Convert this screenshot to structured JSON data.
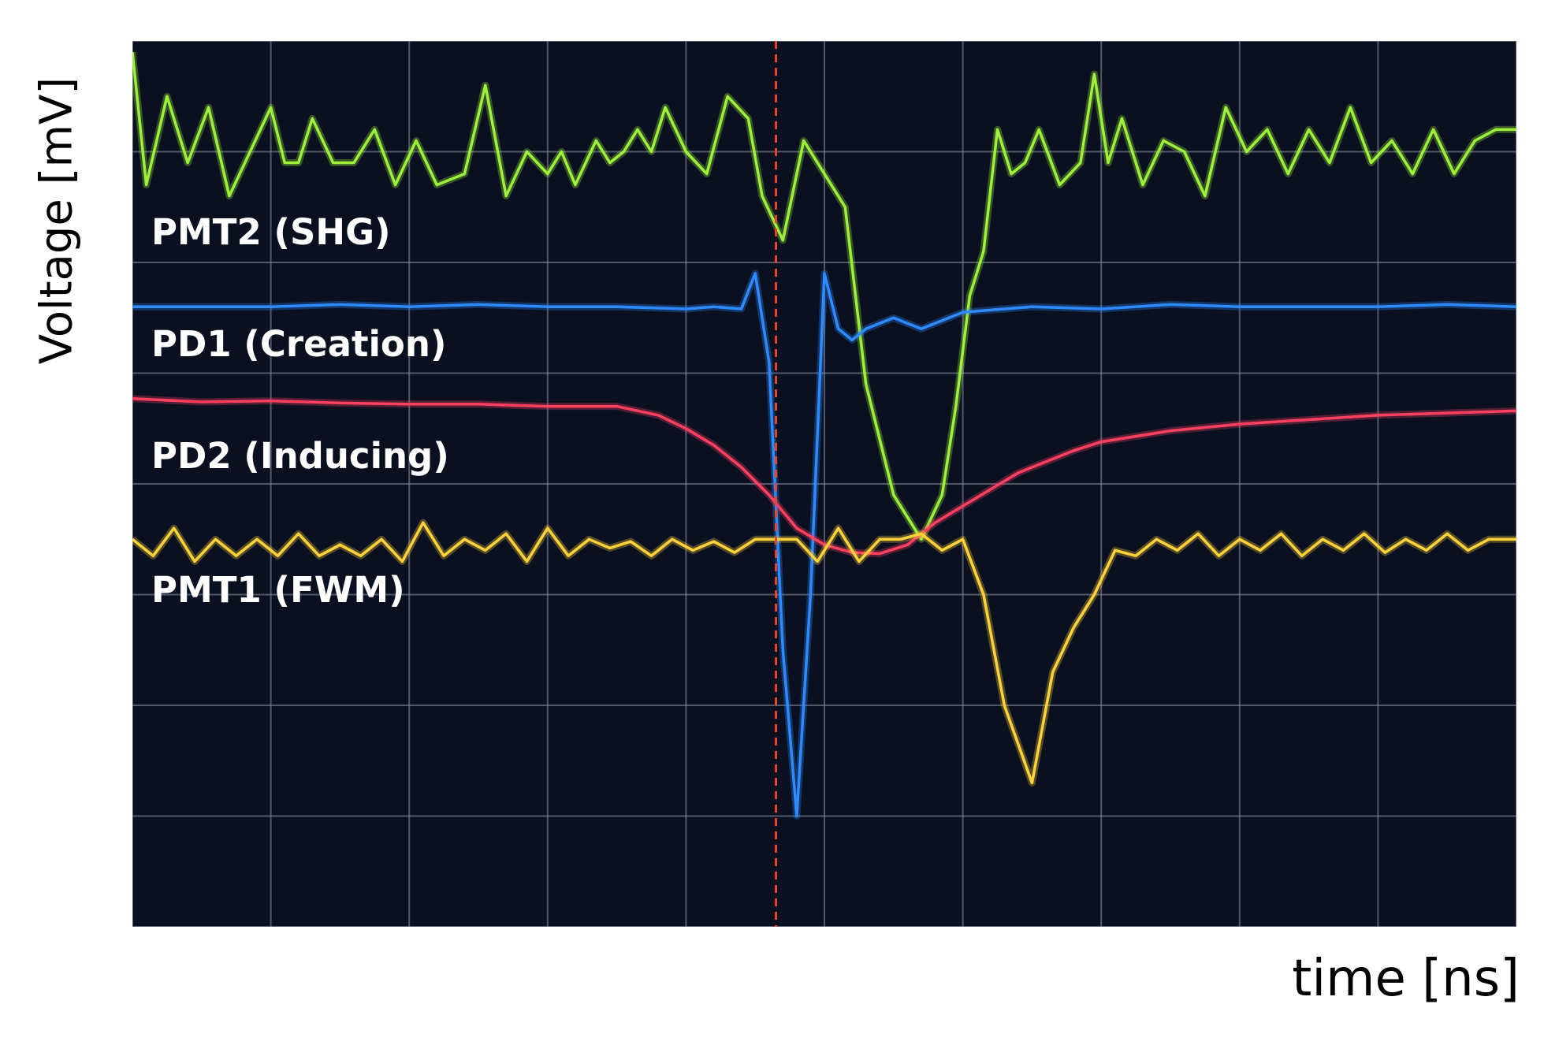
{
  "chart_data": {
    "type": "line",
    "title": "",
    "xlabel": "time [ns]",
    "ylabel": "Voltage [mV]",
    "xlim": [
      0,
      10
    ],
    "ylim": [
      0,
      8
    ],
    "grid": true,
    "colors": {
      "background": "#0a1020",
      "grid": "#8a93a8",
      "marker": "#e8452a"
    },
    "vertical_marker_x": 4.65,
    "series": [
      {
        "name": "PMT2 (SHG)",
        "color": "#9ef03a",
        "x": [
          0,
          0.1,
          0.25,
          0.4,
          0.55,
          0.7,
          0.85,
          1.0,
          1.1,
          1.2,
          1.3,
          1.45,
          1.6,
          1.75,
          1.9,
          2.05,
          2.2,
          2.4,
          2.55,
          2.7,
          2.85,
          3.0,
          3.1,
          3.2,
          3.35,
          3.45,
          3.55,
          3.65,
          3.75,
          3.85,
          4.0,
          4.15,
          4.3,
          4.45,
          4.55,
          4.7,
          4.85,
          5.0,
          5.15,
          5.3,
          5.5,
          5.7,
          5.85,
          5.95,
          6.05,
          6.15,
          6.25,
          6.35,
          6.45,
          6.55,
          6.7,
          6.85,
          6.95,
          7.05,
          7.15,
          7.3,
          7.45,
          7.6,
          7.75,
          7.9,
          8.05,
          8.2,
          8.35,
          8.5,
          8.65,
          8.8,
          8.95,
          9.1,
          9.25,
          9.4,
          9.55,
          9.7,
          9.85,
          10.0
        ],
        "values": [
          7.9,
          6.7,
          7.5,
          6.9,
          7.4,
          6.6,
          7.0,
          7.4,
          6.9,
          6.9,
          7.3,
          6.9,
          6.9,
          7.2,
          6.7,
          7.1,
          6.7,
          6.8,
          7.6,
          6.6,
          7.0,
          6.8,
          7.0,
          6.7,
          7.1,
          6.9,
          7.0,
          7.2,
          7.0,
          7.4,
          7.0,
          6.8,
          7.5,
          7.3,
          6.6,
          6.2,
          7.1,
          6.8,
          6.5,
          4.9,
          3.9,
          3.5,
          3.9,
          4.7,
          5.7,
          6.1,
          7.2,
          6.8,
          6.9,
          7.2,
          6.7,
          6.9,
          7.7,
          6.9,
          7.3,
          6.7,
          7.1,
          7.0,
          6.6,
          7.4,
          7.0,
          7.2,
          6.8,
          7.2,
          6.9,
          7.4,
          6.9,
          7.1,
          6.8,
          7.2,
          6.8,
          7.1,
          7.2,
          7.2
        ]
      },
      {
        "name": "PD1 (Creation)",
        "color": "#2e8bff",
        "x": [
          0,
          0.5,
          1.0,
          1.5,
          2.0,
          2.5,
          3.0,
          3.5,
          4.0,
          4.2,
          4.4,
          4.5,
          4.6,
          4.7,
          4.8,
          4.9,
          5.0,
          5.1,
          5.2,
          5.3,
          5.5,
          5.7,
          6.0,
          6.5,
          7.0,
          7.5,
          8.0,
          8.5,
          9.0,
          9.5,
          10.0
        ],
        "values": [
          5.6,
          5.6,
          5.6,
          5.62,
          5.6,
          5.62,
          5.6,
          5.6,
          5.58,
          5.6,
          5.58,
          5.9,
          5.1,
          2.5,
          1.0,
          3.0,
          5.9,
          5.4,
          5.3,
          5.4,
          5.5,
          5.4,
          5.55,
          5.6,
          5.58,
          5.62,
          5.6,
          5.6,
          5.6,
          5.62,
          5.6
        ]
      },
      {
        "name": "PD2 (Inducing)",
        "color": "#ff4060",
        "x": [
          0,
          0.5,
          1.0,
          1.5,
          2.0,
          2.5,
          3.0,
          3.5,
          3.8,
          4.0,
          4.2,
          4.4,
          4.6,
          4.8,
          5.0,
          5.2,
          5.4,
          5.6,
          5.8,
          6.0,
          6.2,
          6.4,
          6.6,
          6.8,
          7.0,
          7.5,
          8.0,
          8.5,
          9.0,
          9.5,
          10.0
        ],
        "values": [
          4.77,
          4.74,
          4.75,
          4.73,
          4.72,
          4.72,
          4.7,
          4.7,
          4.62,
          4.5,
          4.35,
          4.15,
          3.9,
          3.6,
          3.45,
          3.38,
          3.37,
          3.45,
          3.65,
          3.8,
          3.95,
          4.1,
          4.2,
          4.3,
          4.38,
          4.48,
          4.54,
          4.58,
          4.62,
          4.64,
          4.66
        ]
      },
      {
        "name": "PMT1 (FWM)",
        "color": "#ffd23a",
        "x": [
          0,
          0.15,
          0.3,
          0.45,
          0.6,
          0.75,
          0.9,
          1.05,
          1.2,
          1.35,
          1.5,
          1.65,
          1.8,
          1.95,
          2.1,
          2.25,
          2.4,
          2.55,
          2.7,
          2.85,
          3.0,
          3.15,
          3.3,
          3.45,
          3.6,
          3.75,
          3.9,
          4.05,
          4.2,
          4.35,
          4.5,
          4.65,
          4.8,
          4.95,
          5.1,
          5.25,
          5.4,
          5.55,
          5.7,
          5.85,
          6.0,
          6.15,
          6.3,
          6.5,
          6.65,
          6.8,
          6.95,
          7.1,
          7.25,
          7.4,
          7.55,
          7.7,
          7.85,
          8.0,
          8.15,
          8.3,
          8.45,
          8.6,
          8.75,
          8.9,
          9.05,
          9.2,
          9.35,
          9.5,
          9.65,
          9.8,
          10.0
        ],
        "values": [
          3.5,
          3.35,
          3.6,
          3.3,
          3.5,
          3.35,
          3.5,
          3.35,
          3.55,
          3.35,
          3.45,
          3.35,
          3.5,
          3.3,
          3.65,
          3.35,
          3.5,
          3.4,
          3.55,
          3.3,
          3.6,
          3.35,
          3.5,
          3.42,
          3.48,
          3.35,
          3.5,
          3.4,
          3.48,
          3.38,
          3.5,
          3.5,
          3.5,
          3.3,
          3.6,
          3.3,
          3.5,
          3.5,
          3.55,
          3.4,
          3.5,
          3.0,
          2.0,
          1.3,
          2.3,
          2.7,
          3.0,
          3.4,
          3.35,
          3.5,
          3.4,
          3.55,
          3.35,
          3.5,
          3.4,
          3.55,
          3.35,
          3.5,
          3.4,
          3.55,
          3.38,
          3.5,
          3.4,
          3.55,
          3.4,
          3.5,
          3.5
        ]
      }
    ]
  }
}
